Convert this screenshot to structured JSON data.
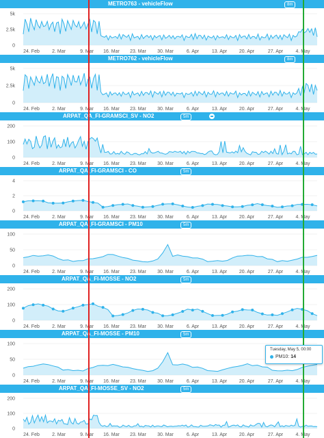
{
  "colors": {
    "header": "#2fb2ea",
    "series": "#2fb2ea",
    "area": "#bfe7f8",
    "red_marker": "#e02020",
    "green_marker": "#22aa33"
  },
  "x_ticks": [
    "24. Feb",
    "2. Mar",
    "9. Mar",
    "16. Mar",
    "23. Mar",
    "30. Mar",
    "6. Apr",
    "13. Apr",
    "20. Apr",
    "27. Apr",
    "4. May"
  ],
  "panels": [
    {
      "title": "METRO763 - vehicleFlow",
      "badge": "8m",
      "menu": false,
      "y_ticks": [
        "5k",
        "2.5k",
        "0"
      ],
      "ymax": 5000,
      "style": "dense-two-regime",
      "markers": false
    },
    {
      "title": "METRO762 - vehicleFlow",
      "badge": "8m",
      "menu": false,
      "y_ticks": [
        "5k",
        "2.5k",
        "0"
      ],
      "ymax": 5000,
      "style": "dense-two-regime",
      "markers": false
    },
    {
      "title": "ARPAT_QA_FI-GRAMSCI_SV - NO2",
      "badge": "5m",
      "menu": true,
      "y_ticks": [
        "200",
        "100",
        "0"
      ],
      "ymax": 200,
      "style": "dense-spiky",
      "markers": false
    },
    {
      "title": "ARPAT_QA_FI-GRAMSCI - CO",
      "badge": "5m",
      "menu": false,
      "y_ticks": [
        "4",
        "2",
        "0"
      ],
      "ymax": 4,
      "style": "smooth-low",
      "markers": true
    },
    {
      "title": "ARPAT_QA_FI-GRAMSCI - PM10",
      "badge": "5m",
      "menu": false,
      "y_ticks": [
        "100",
        "50",
        "0"
      ],
      "ymax": 100,
      "style": "smooth-peak",
      "markers": false
    },
    {
      "title": "ARPAT_QA_FI-MOSSE - NO2",
      "badge": "5m",
      "menu": false,
      "y_ticks": [
        "200",
        "100",
        "0"
      ],
      "ymax": 200,
      "style": "smooth-mid",
      "markers": true
    },
    {
      "title": "ARPAT_QA_FI-MOSSE - PM10",
      "badge": "5m",
      "menu": false,
      "y_ticks": [
        "100",
        "50",
        "0"
      ],
      "ymax": 100,
      "style": "smooth-peak",
      "markers": false
    },
    {
      "title": "ARPAT_QA_FI-MOSSE_SV - NO2",
      "badge": "5m",
      "menu": false,
      "y_ticks": [
        "200",
        "100",
        "0"
      ],
      "ymax": 200,
      "style": "dense-spiky-low",
      "markers": false
    }
  ],
  "tooltip": {
    "date": "Tuesday, May 5, 00:00",
    "series": "PM10",
    "value": "14"
  }
}
